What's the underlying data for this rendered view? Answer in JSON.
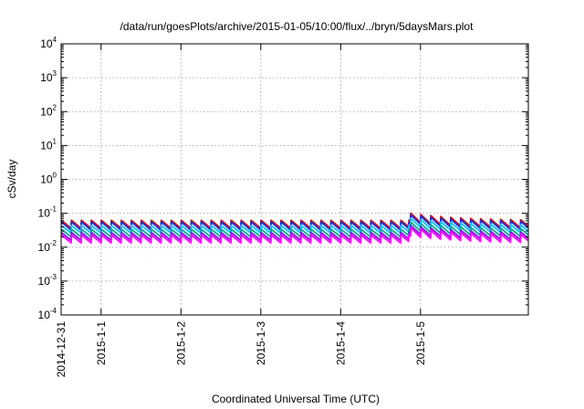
{
  "chart_data": {
    "type": "line",
    "title": "/data/run/goesPlots/archive/2015-01-05/10:00/flux/../bryn/5daysMars.plot",
    "xlabel": "Coordinated Universal Time (UTC)",
    "ylabel": "cSv/day",
    "y_scale": "log",
    "ylim": [
      0.0001,
      10000
    ],
    "xlim": [
      -0.5,
      5.35
    ],
    "grid": true,
    "legend": "none",
    "x_ticks": [
      {
        "value": -0.5,
        "label": "2014-12-31"
      },
      {
        "value": 0,
        "label": "2015-1-1"
      },
      {
        "value": 1,
        "label": "2015-1-2"
      },
      {
        "value": 2,
        "label": "2015-1-3"
      },
      {
        "value": 3,
        "label": "2015-1-4"
      },
      {
        "value": 4,
        "label": "2015-1-5"
      }
    ],
    "y_ticks": [
      {
        "value": 0.0001,
        "base": "10",
        "exp": "-4"
      },
      {
        "value": 0.001,
        "base": "10",
        "exp": "-3"
      },
      {
        "value": 0.01,
        "base": "10",
        "exp": "-2"
      },
      {
        "value": 0.1,
        "base": "10",
        "exp": "-1"
      },
      {
        "value": 1,
        "base": "10",
        "exp": "0"
      },
      {
        "value": 10,
        "base": "10",
        "exp": "1"
      },
      {
        "value": 100,
        "base": "10",
        "exp": "2"
      },
      {
        "value": 1000,
        "base": "10",
        "exp": "3"
      },
      {
        "value": 10000,
        "base": "10",
        "exp": "4"
      }
    ],
    "sawtooth": {
      "period_days": 0.125,
      "event_day": 3.85,
      "event_factor": 1.65,
      "event_decay_days": 0.5
    },
    "series": [
      {
        "color": "#ff0000",
        "peak": 0.062,
        "trough": 0.036
      },
      {
        "color": "#0033ff",
        "peak": 0.056,
        "trough": 0.032
      },
      {
        "color": "#00c8ff",
        "peak": 0.044,
        "trough": 0.026
      },
      {
        "color": "#00b08a",
        "peak": 0.034,
        "trough": 0.02
      },
      {
        "color": "#a000ff",
        "peak": 0.027,
        "trough": 0.016
      },
      {
        "color": "#ff00ff",
        "peak": 0.023,
        "trough": 0.0135
      }
    ]
  }
}
